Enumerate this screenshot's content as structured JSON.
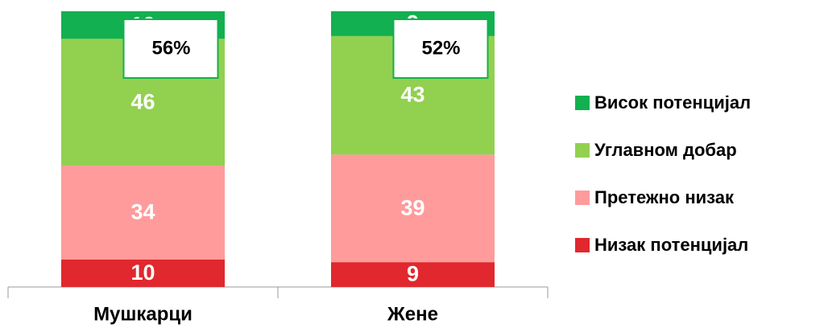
{
  "chart_data": {
    "type": "stacked_bar",
    "categories": [
      "Мушкарци",
      "Жене"
    ],
    "series": [
      {
        "name": "Низак потенцијал",
        "color": "#e0282e",
        "values": [
          10,
          9
        ]
      },
      {
        "name": "Претежно низак",
        "color": "#ff9b9b",
        "values": [
          34,
          39
        ]
      },
      {
        "name": "Углавном добар",
        "color": "#92d050",
        "values": [
          46,
          43
        ]
      },
      {
        "name": "Висок потенцијал",
        "color": "#12b050",
        "values": [
          10,
          9
        ]
      }
    ],
    "annotations": [
      "56%",
      "52%"
    ],
    "ylim": [
      0,
      100
    ],
    "legend": "right"
  }
}
